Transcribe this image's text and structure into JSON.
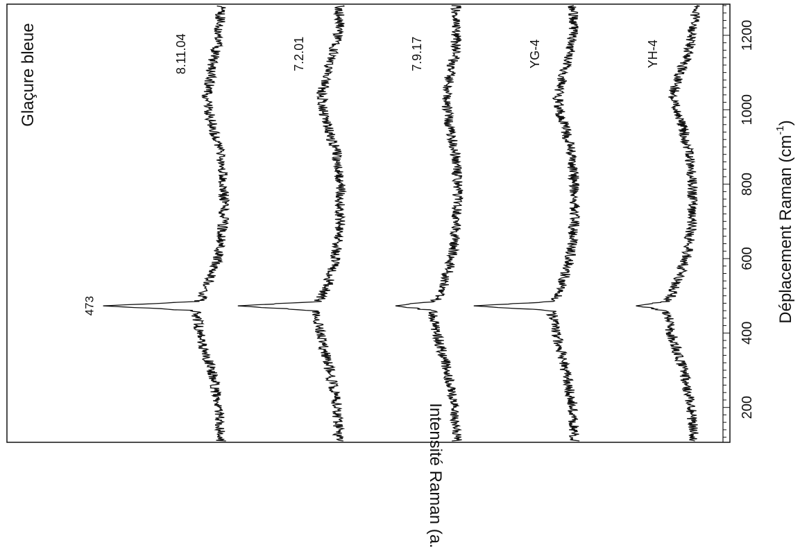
{
  "chart_data": {
    "type": "line",
    "title": "Glaçure bleue",
    "xlabel": "Déplacement Raman (cm",
    "xlabel_sup": "-1",
    "xlabel_close": ")",
    "ylabel": "Intensité Raman (a.u.)",
    "xlim": [
      110,
      1280
    ],
    "xticks": [
      200,
      400,
      600,
      800,
      1000,
      1200
    ],
    "xtick_labels": [
      "200",
      "400",
      "600",
      "800",
      "1000",
      "1200"
    ],
    "peak_label": "473",
    "peak_position": 473,
    "grid": false,
    "legend": "none",
    "series": [
      {
        "name": "8.11.04",
        "offset": 4,
        "points": [
          [
            110,
            1.0
          ],
          [
            200,
            1.1
          ],
          [
            300,
            1.6
          ],
          [
            400,
            2.4
          ],
          [
            460,
            2.6
          ],
          [
            473,
            8.7
          ],
          [
            485,
            2.4
          ],
          [
            520,
            1.9
          ],
          [
            600,
            1.2
          ],
          [
            700,
            0.8
          ],
          [
            800,
            0.8
          ],
          [
            880,
            1.0
          ],
          [
            950,
            1.5
          ],
          [
            1000,
            1.8
          ],
          [
            1040,
            1.9
          ],
          [
            1100,
            1.6
          ],
          [
            1150,
            1.4
          ],
          [
            1200,
            1.1
          ],
          [
            1280,
            1.0
          ]
        ]
      },
      {
        "name": "7.2.01",
        "offset": 3,
        "points": [
          [
            110,
            1.0
          ],
          [
            200,
            1.1
          ],
          [
            300,
            1.6
          ],
          [
            400,
            2.2
          ],
          [
            460,
            2.5
          ],
          [
            473,
            7.6
          ],
          [
            485,
            2.3
          ],
          [
            520,
            1.8
          ],
          [
            600,
            1.2
          ],
          [
            700,
            0.9
          ],
          [
            800,
            0.9
          ],
          [
            880,
            1.1
          ],
          [
            950,
            1.7
          ],
          [
            1000,
            2.0
          ],
          [
            1040,
            2.1
          ],
          [
            1100,
            1.8
          ],
          [
            1150,
            1.4
          ],
          [
            1200,
            1.0
          ],
          [
            1280,
            0.9
          ]
        ]
      },
      {
        "name": "7.9.17",
        "offset": 2,
        "points": [
          [
            110,
            1.0
          ],
          [
            200,
            1.1
          ],
          [
            300,
            1.6
          ],
          [
            400,
            2.3
          ],
          [
            460,
            2.6
          ],
          [
            473,
            5.0
          ],
          [
            485,
            2.4
          ],
          [
            520,
            1.9
          ],
          [
            600,
            1.3
          ],
          [
            700,
            1.0
          ],
          [
            800,
            0.9
          ],
          [
            880,
            1.1
          ],
          [
            950,
            1.4
          ],
          [
            1000,
            1.6
          ],
          [
            1040,
            1.7
          ],
          [
            1100,
            1.4
          ],
          [
            1150,
            1.1
          ],
          [
            1200,
            1.0
          ],
          [
            1280,
            1.0
          ]
        ]
      },
      {
        "name": "YG-4",
        "offset": 1,
        "points": [
          [
            110,
            1.0
          ],
          [
            200,
            1.1
          ],
          [
            300,
            1.6
          ],
          [
            400,
            2.2
          ],
          [
            460,
            2.5
          ],
          [
            473,
            7.6
          ],
          [
            485,
            2.3
          ],
          [
            520,
            1.9
          ],
          [
            600,
            1.3
          ],
          [
            700,
            1.0
          ],
          [
            800,
            1.0
          ],
          [
            880,
            1.2
          ],
          [
            950,
            1.6
          ],
          [
            1000,
            2.0
          ],
          [
            1040,
            2.1
          ],
          [
            1100,
            1.7
          ],
          [
            1150,
            1.3
          ],
          [
            1200,
            1.1
          ],
          [
            1280,
            1.1
          ]
        ]
      },
      {
        "name": "YH-4",
        "offset": 0,
        "points": [
          [
            110,
            0.9
          ],
          [
            200,
            1.1
          ],
          [
            300,
            1.6
          ],
          [
            400,
            2.4
          ],
          [
            460,
            2.7
          ],
          [
            473,
            4.7
          ],
          [
            485,
            2.6
          ],
          [
            520,
            2.2
          ],
          [
            600,
            1.4
          ],
          [
            700,
            1.0
          ],
          [
            800,
            1.0
          ],
          [
            880,
            1.2
          ],
          [
            950,
            1.6
          ],
          [
            1000,
            2.1
          ],
          [
            1040,
            2.3
          ],
          [
            1100,
            1.8
          ],
          [
            1150,
            1.3
          ],
          [
            1200,
            1.0
          ],
          [
            1280,
            0.8
          ]
        ]
      }
    ]
  }
}
